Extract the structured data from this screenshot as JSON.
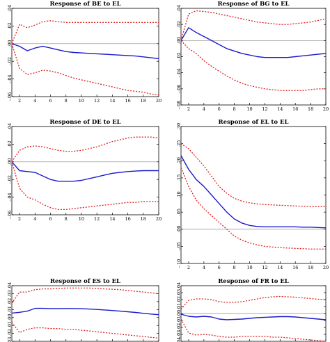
{
  "chart_data": [
    {
      "type": "line",
      "title": "Response of BE to EL",
      "x": [
        1,
        2,
        3,
        4,
        5,
        6,
        7,
        8,
        9,
        10,
        11,
        12,
        13,
        14,
        15,
        16,
        17,
        18,
        19,
        20
      ],
      "xticks": [
        2,
        4,
        6,
        8,
        10,
        12,
        14,
        16,
        18,
        20
      ],
      "ylim": [
        -0.06,
        0.04
      ],
      "yticks": [
        0.04,
        0.02,
        0.0,
        -0.02,
        -0.04,
        -0.06
      ],
      "ytick_labels": [
        ".04",
        ".02",
        ".00",
        "-.02",
        "-.04",
        "-.06"
      ],
      "zero_line": true,
      "series": [
        {
          "role": "response",
          "color": "#1a1acc",
          "style": "solid",
          "values": [
            0.0,
            -0.003,
            -0.008,
            -0.005,
            -0.003,
            -0.005,
            -0.007,
            -0.009,
            -0.01,
            -0.0105,
            -0.011,
            -0.0115,
            -0.012,
            -0.0125,
            -0.013,
            -0.0135,
            -0.014,
            -0.015,
            -0.016,
            -0.017
          ]
        },
        {
          "role": "upper_band",
          "color": "#e02020",
          "style": "dotted",
          "values": [
            0.0,
            0.022,
            0.018,
            0.021,
            0.025,
            0.026,
            0.025,
            0.024,
            0.024,
            0.024,
            0.024,
            0.024,
            0.024,
            0.024,
            0.024,
            0.024,
            0.024,
            0.024,
            0.024,
            0.024
          ]
        },
        {
          "role": "lower_band",
          "color": "#e02020",
          "style": "dotted",
          "values": [
            0.0,
            -0.028,
            -0.035,
            -0.033,
            -0.03,
            -0.031,
            -0.033,
            -0.036,
            -0.039,
            -0.041,
            -0.043,
            -0.045,
            -0.047,
            -0.049,
            -0.051,
            -0.053,
            -0.054,
            -0.055,
            -0.057,
            -0.058
          ]
        }
      ]
    },
    {
      "type": "line",
      "title": "Response of BG to EL",
      "x": [
        1,
        2,
        3,
        4,
        5,
        6,
        7,
        8,
        9,
        10,
        11,
        12,
        13,
        14,
        15,
        16,
        17,
        18,
        19,
        20
      ],
      "xticks": [
        2,
        4,
        6,
        8,
        10,
        12,
        14,
        16,
        18,
        20
      ],
      "ylim": [
        -0.08,
        0.04
      ],
      "yticks": [
        0.04,
        0.02,
        0.0,
        -0.02,
        -0.04,
        -0.06,
        -0.08
      ],
      "ytick_labels": [
        ".04",
        ".02",
        ".00",
        "-.02",
        "-.04",
        "-.06",
        "-.08"
      ],
      "zero_line": true,
      "series": [
        {
          "role": "response",
          "color": "#1a1acc",
          "style": "solid",
          "values": [
            0.0,
            0.016,
            0.01,
            0.005,
            0.0,
            -0.005,
            -0.01,
            -0.013,
            -0.016,
            -0.018,
            -0.02,
            -0.021,
            -0.021,
            -0.021,
            -0.021,
            -0.02,
            -0.019,
            -0.018,
            -0.017,
            -0.016
          ]
        },
        {
          "role": "upper_band",
          "color": "#e02020",
          "style": "dotted",
          "values": [
            0.0,
            0.033,
            0.037,
            0.036,
            0.035,
            0.033,
            0.031,
            0.029,
            0.027,
            0.025,
            0.023,
            0.022,
            0.021,
            0.02,
            0.02,
            0.021,
            0.022,
            0.023,
            0.025,
            0.027
          ]
        },
        {
          "role": "lower_band",
          "color": "#e02020",
          "style": "dotted",
          "values": [
            0.0,
            -0.01,
            -0.016,
            -0.025,
            -0.032,
            -0.038,
            -0.044,
            -0.049,
            -0.053,
            -0.056,
            -0.058,
            -0.06,
            -0.061,
            -0.062,
            -0.062,
            -0.062,
            -0.062,
            -0.061,
            -0.06,
            -0.06
          ]
        }
      ]
    },
    {
      "type": "line",
      "title": "Response of DE to EL",
      "x": [
        1,
        2,
        3,
        4,
        5,
        6,
        7,
        8,
        9,
        10,
        11,
        12,
        13,
        14,
        15,
        16,
        17,
        18,
        19,
        20
      ],
      "xticks": [
        2,
        4,
        6,
        8,
        10,
        12,
        14,
        16,
        18,
        20
      ],
      "ylim": [
        -0.06,
        0.04
      ],
      "yticks": [
        0.04,
        0.02,
        0.0,
        -0.02,
        -0.04,
        -0.06
      ],
      "ytick_labels": [
        ".04",
        ".02",
        ".00",
        "-.02",
        "-.04",
        "-.06"
      ],
      "zero_line": true,
      "series": [
        {
          "role": "response",
          "color": "#1a1acc",
          "style": "solid",
          "values": [
            0.0,
            -0.01,
            -0.011,
            -0.012,
            -0.016,
            -0.02,
            -0.022,
            -0.022,
            -0.022,
            -0.021,
            -0.019,
            -0.017,
            -0.015,
            -0.013,
            -0.012,
            -0.011,
            -0.0105,
            -0.01,
            -0.01,
            -0.01
          ]
        },
        {
          "role": "upper_band",
          "color": "#e02020",
          "style": "dotted",
          "values": [
            0.0,
            0.013,
            0.017,
            0.018,
            0.017,
            0.015,
            0.013,
            0.012,
            0.012,
            0.013,
            0.015,
            0.017,
            0.02,
            0.023,
            0.025,
            0.027,
            0.028,
            0.028,
            0.028,
            0.027
          ]
        },
        {
          "role": "lower_band",
          "color": "#e02020",
          "style": "dotted",
          "values": [
            0.0,
            -0.03,
            -0.04,
            -0.043,
            -0.048,
            -0.052,
            -0.054,
            -0.054,
            -0.053,
            -0.052,
            -0.051,
            -0.05,
            -0.049,
            -0.048,
            -0.047,
            -0.046,
            -0.046,
            -0.045,
            -0.045,
            -0.045
          ]
        }
      ]
    },
    {
      "type": "line",
      "title": "Response of EL to EL",
      "x": [
        1,
        2,
        3,
        4,
        5,
        6,
        7,
        8,
        9,
        10,
        11,
        12,
        13,
        14,
        15,
        16,
        17,
        18,
        19,
        20
      ],
      "xticks": [
        2,
        4,
        6,
        8,
        10,
        12,
        14,
        16,
        18,
        20
      ],
      "ylim": [
        -0.1,
        0.3
      ],
      "yticks": [
        0.3,
        0.25,
        0.2,
        0.15,
        0.1,
        0.05,
        0.0,
        -0.05,
        -0.1
      ],
      "ytick_labels": [
        ".30",
        ".25",
        ".20",
        ".15",
        ".10",
        ".05",
        ".00",
        "-.05",
        "-.10"
      ],
      "zero_line": true,
      "series": [
        {
          "role": "response",
          "color": "#1a1acc",
          "style": "solid",
          "values": [
            0.215,
            0.175,
            0.145,
            0.125,
            0.1,
            0.075,
            0.05,
            0.03,
            0.018,
            0.011,
            0.008,
            0.007,
            0.007,
            0.007,
            0.007,
            0.007,
            0.006,
            0.006,
            0.005,
            0.004
          ]
        },
        {
          "role": "upper_band",
          "color": "#e02020",
          "style": "dotted",
          "values": [
            0.25,
            0.235,
            0.21,
            0.185,
            0.155,
            0.125,
            0.105,
            0.09,
            0.082,
            0.077,
            0.074,
            0.072,
            0.071,
            0.07,
            0.069,
            0.068,
            0.067,
            0.066,
            0.066,
            0.066
          ]
        },
        {
          "role": "lower_band",
          "color": "#e02020",
          "style": "dotted",
          "values": [
            0.18,
            0.125,
            0.085,
            0.06,
            0.04,
            0.02,
            0.0,
            -0.02,
            -0.032,
            -0.04,
            -0.046,
            -0.05,
            -0.052,
            -0.054,
            -0.055,
            -0.056,
            -0.057,
            -0.058,
            -0.058,
            -0.058
          ]
        }
      ]
    },
    {
      "type": "line",
      "title": "Response of ES to EL",
      "x": [
        1,
        2,
        3,
        4,
        5,
        6,
        7,
        8,
        9,
        10,
        11,
        12,
        13,
        14,
        15,
        16,
        17,
        18,
        19,
        20
      ],
      "xticks": [
        2,
        4,
        6,
        8,
        10,
        12,
        14,
        16,
        18,
        20
      ],
      "ylim": [
        -0.03,
        0.04
      ],
      "yticks": [
        0.04,
        0.03,
        0.02,
        0.01,
        0.0,
        -0.01,
        -0.02,
        -0.03
      ],
      "ytick_labels": [
        ".04",
        ".03",
        ".02",
        ".01",
        ".00",
        "-.01",
        "-.02",
        "-.03"
      ],
      "zero_line": false,
      "series": [
        {
          "role": "response",
          "color": "#1a1acc",
          "style": "solid",
          "values": [
            0.0055,
            0.0065,
            0.008,
            0.0115,
            0.0115,
            0.0112,
            0.0112,
            0.0113,
            0.0112,
            0.011,
            0.0106,
            0.0101,
            0.0095,
            0.0088,
            0.008,
            0.0072,
            0.0063,
            0.0053,
            0.0043,
            0.0035
          ]
        },
        {
          "role": "upper_band",
          "color": "#e02020",
          "style": "dotted",
          "values": [
            0.018,
            0.032,
            0.032,
            0.035,
            0.036,
            0.036,
            0.0365,
            0.037,
            0.037,
            0.037,
            0.037,
            0.0365,
            0.036,
            0.0355,
            0.035,
            0.034,
            0.033,
            0.032,
            0.031,
            0.03
          ]
        },
        {
          "role": "lower_band",
          "color": "#e02020",
          "style": "dotted",
          "values": [
            -0.006,
            -0.019,
            -0.015,
            -0.013,
            -0.013,
            -0.014,
            -0.014,
            -0.015,
            -0.015,
            -0.016,
            -0.017,
            -0.018,
            -0.019,
            -0.02,
            -0.021,
            -0.022,
            -0.023,
            -0.024,
            -0.025,
            -0.026
          ]
        }
      ]
    },
    {
      "type": "line",
      "title": "Response of FR to EL",
      "x": [
        1,
        2,
        3,
        4,
        5,
        6,
        7,
        8,
        9,
        10,
        11,
        12,
        13,
        14,
        15,
        16,
        17,
        18,
        19,
        20
      ],
      "xticks": [
        2,
        4,
        6,
        8,
        10,
        12,
        14,
        16,
        18,
        20
      ],
      "ylim": [
        -0.04,
        0.04
      ],
      "yticks": [
        0.04,
        0.03,
        0.02,
        0.01,
        0.0,
        -0.01,
        -0.02,
        -0.03,
        -0.04
      ],
      "ytick_labels": [
        ".04",
        ".03",
        ".02",
        ".01",
        ".00",
        "-.01",
        "-.02",
        "-.03",
        "-.04"
      ],
      "zero_line": true,
      "series": [
        {
          "role": "response",
          "color": "#1a1acc",
          "style": "solid",
          "values": [
            -0.001,
            -0.004,
            -0.005,
            -0.004,
            -0.005,
            -0.008,
            -0.009,
            -0.0085,
            -0.008,
            -0.007,
            -0.006,
            -0.0055,
            -0.005,
            -0.0045,
            -0.0045,
            -0.005,
            -0.006,
            -0.007,
            -0.008,
            -0.009
          ]
        },
        {
          "role": "upper_band",
          "color": "#e02020",
          "style": "dotted",
          "values": [
            0.006,
            0.019,
            0.021,
            0.021,
            0.02,
            0.017,
            0.016,
            0.016,
            0.017,
            0.019,
            0.021,
            0.023,
            0.024,
            0.0245,
            0.024,
            0.0235,
            0.0225,
            0.0215,
            0.0205,
            0.02
          ]
        },
        {
          "role": "lower_band",
          "color": "#e02020",
          "style": "dotted",
          "values": [
            -0.008,
            -0.028,
            -0.031,
            -0.03,
            -0.031,
            -0.033,
            -0.034,
            -0.034,
            -0.033,
            -0.033,
            -0.033,
            -0.033,
            -0.034,
            -0.034,
            -0.035,
            -0.036,
            -0.037,
            -0.038,
            -0.039,
            -0.04
          ]
        }
      ]
    }
  ]
}
